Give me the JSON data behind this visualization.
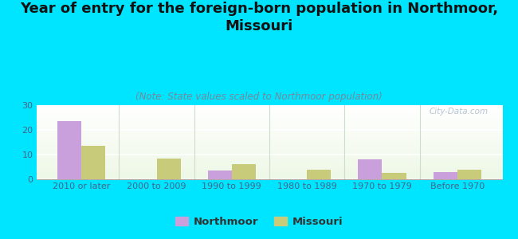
{
  "title": "Year of entry for the foreign-born population in Northmoor,\nMissouri",
  "subtitle": "(Note: State values scaled to Northmoor population)",
  "categories": [
    "2010 or later",
    "2000 to 2009",
    "1990 to 1999",
    "1980 to 1989",
    "1970 to 1979",
    "Before 1970"
  ],
  "northmoor_values": [
    23.5,
    0,
    3.5,
    0,
    8.0,
    3.0
  ],
  "missouri_values": [
    13.5,
    8.5,
    6.0,
    4.0,
    2.5,
    4.0
  ],
  "northmoor_color": "#c9a0dc",
  "missouri_color": "#c8cc7a",
  "background_color": "#00e5ff",
  "ylim": [
    0,
    30
  ],
  "yticks": [
    0,
    10,
    20,
    30
  ],
  "bar_width": 0.32,
  "watermark": "City-Data.com",
  "title_fontsize": 13,
  "subtitle_fontsize": 8.5,
  "legend_fontsize": 9.5,
  "tick_fontsize": 8
}
